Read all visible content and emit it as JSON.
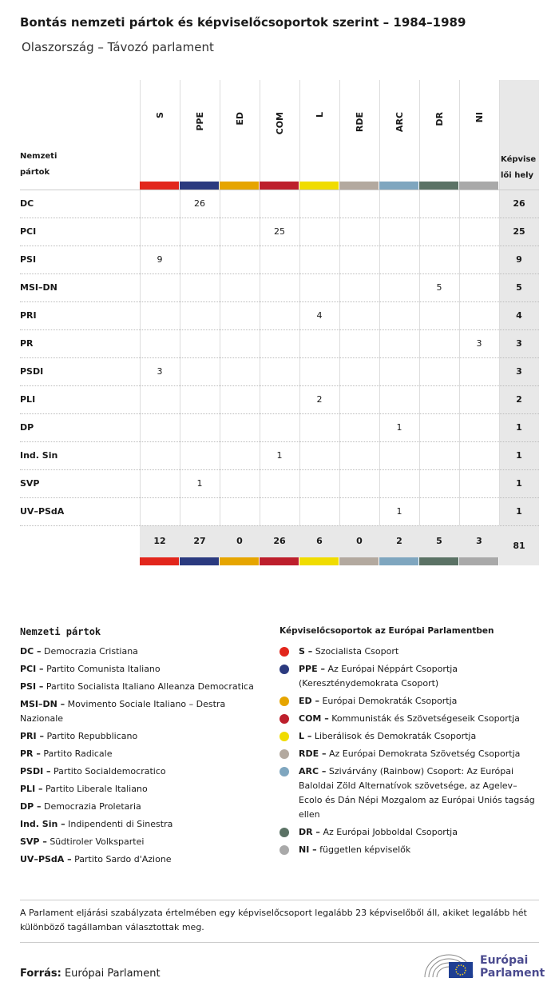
{
  "header": {
    "title": "Bontás nemzeti pártok és képviselőcsoportok szerint – 1984–1989",
    "subtitle": "Olaszország – Távozó parlament"
  },
  "table": {
    "row_header": "Nemzeti pártok",
    "total_header": "Képviselői hely",
    "groups": [
      {
        "name": "S",
        "color": "#e2261c"
      },
      {
        "name": "PPE",
        "color": "#2b3a7f"
      },
      {
        "name": "ED",
        "color": "#e6a500"
      },
      {
        "name": "COM",
        "color": "#bd1f2c"
      },
      {
        "name": "L",
        "color": "#f0dc00"
      },
      {
        "name": "RDE",
        "color": "#b3a99f"
      },
      {
        "name": "ARC",
        "color": "#7fa6bf"
      },
      {
        "name": "DR",
        "color": "#5b7265"
      },
      {
        "name": "NI",
        "color": "#a9a9a9"
      }
    ],
    "rows": [
      {
        "party": "DC",
        "cells": [
          null,
          26,
          null,
          null,
          null,
          null,
          null,
          null,
          null
        ],
        "total": 26
      },
      {
        "party": "PCI",
        "cells": [
          null,
          null,
          null,
          25,
          null,
          null,
          null,
          null,
          null
        ],
        "total": 25
      },
      {
        "party": "PSI",
        "cells": [
          9,
          null,
          null,
          null,
          null,
          null,
          null,
          null,
          null
        ],
        "total": 9
      },
      {
        "party": "MSI–DN",
        "cells": [
          null,
          null,
          null,
          null,
          null,
          null,
          null,
          5,
          null
        ],
        "total": 5
      },
      {
        "party": "PRI",
        "cells": [
          null,
          null,
          null,
          null,
          4,
          null,
          null,
          null,
          null
        ],
        "total": 4
      },
      {
        "party": "PR",
        "cells": [
          null,
          null,
          null,
          null,
          null,
          null,
          null,
          null,
          3
        ],
        "total": 3
      },
      {
        "party": "PSDI",
        "cells": [
          3,
          null,
          null,
          null,
          null,
          null,
          null,
          null,
          null
        ],
        "total": 3
      },
      {
        "party": "PLI",
        "cells": [
          null,
          null,
          null,
          null,
          2,
          null,
          null,
          null,
          null
        ],
        "total": 2
      },
      {
        "party": "DP",
        "cells": [
          null,
          null,
          null,
          null,
          null,
          null,
          1,
          null,
          null
        ],
        "total": 1
      },
      {
        "party": "Ind. Sin",
        "cells": [
          null,
          null,
          null,
          1,
          null,
          null,
          null,
          null,
          null
        ],
        "total": 1
      },
      {
        "party": "SVP",
        "cells": [
          null,
          1,
          null,
          null,
          null,
          null,
          null,
          null,
          null
        ],
        "total": 1
      },
      {
        "party": "UV–PSdA",
        "cells": [
          null,
          null,
          null,
          null,
          null,
          null,
          1,
          null,
          null
        ],
        "total": 1
      }
    ],
    "totals": [
      12,
      27,
      0,
      26,
      6,
      0,
      2,
      5,
      3
    ],
    "grand_total": 81
  },
  "legend_parties": {
    "heading": "Nemzeti pártok",
    "items": [
      {
        "abbr": "DC –",
        "name": "Democrazia Cristiana"
      },
      {
        "abbr": "PCI –",
        "name": "Partito Comunista Italiano"
      },
      {
        "abbr": "PSI –",
        "name": "Partito Socialista Italiano Alleanza Democratica"
      },
      {
        "abbr": "MSI–DN –",
        "name": "Movimento Sociale Italiano – Destra Nazionale"
      },
      {
        "abbr": "PRI –",
        "name": "Partito Repubblicano"
      },
      {
        "abbr": "PR –",
        "name": "Partito Radicale"
      },
      {
        "abbr": "PSDI –",
        "name": "Partito Socialdemocratico"
      },
      {
        "abbr": "PLI –",
        "name": "Partito Liberale Italiano"
      },
      {
        "abbr": "DP –",
        "name": "Democrazia Proletaria"
      },
      {
        "abbr": "Ind. Sin –",
        "name": "Indipendenti di Sinestra"
      },
      {
        "abbr": "SVP –",
        "name": "Südtiroler Volkspartei"
      },
      {
        "abbr": "UV–PSdA –",
        "name": "Partito Sardo d'Azione"
      }
    ]
  },
  "legend_groups": {
    "heading": "Képviselőcsoportok az Európai Parlamentben",
    "items": [
      {
        "abbr": "S –",
        "name": "Szocialista Csoport"
      },
      {
        "abbr": "PPE –",
        "name": "Az Európai Néppárt Csoportja (Kereszténydemokrata Csoport)"
      },
      {
        "abbr": "ED –",
        "name": "Európai Demokraták Csoportja"
      },
      {
        "abbr": "COM –",
        "name": "Kommunisták és Szövetségeseik Csoportja"
      },
      {
        "abbr": "L –",
        "name": "Liberálisok és Demokraták Csoportja"
      },
      {
        "abbr": "RDE –",
        "name": "Az Európai Demokrata Szövetség Csoportja"
      },
      {
        "abbr": "ARC –",
        "name": "Szivárvány (Rainbow) Csoport: Az Európai Baloldai Zöld Alternatívok szövetsége, az Agelev–Ecolo és Dán Népi Mozgalom az Európai Uniós tagság ellen"
      },
      {
        "abbr": "DR –",
        "name": "Az Európai Jobboldal Csoportja"
      },
      {
        "abbr": "NI –",
        "name": "független képviselők"
      }
    ]
  },
  "footnote": "A Parlament eljárási szabályzata értelmében egy képviselőcsoport legalább 23 képviselőből áll, akiket legalább hét különböző tagállamban választottak meg.",
  "source": {
    "label": "Forrás:",
    "text": "Európai Parlament"
  },
  "logo": {
    "line1": "Európai",
    "line2": "Parlament"
  }
}
